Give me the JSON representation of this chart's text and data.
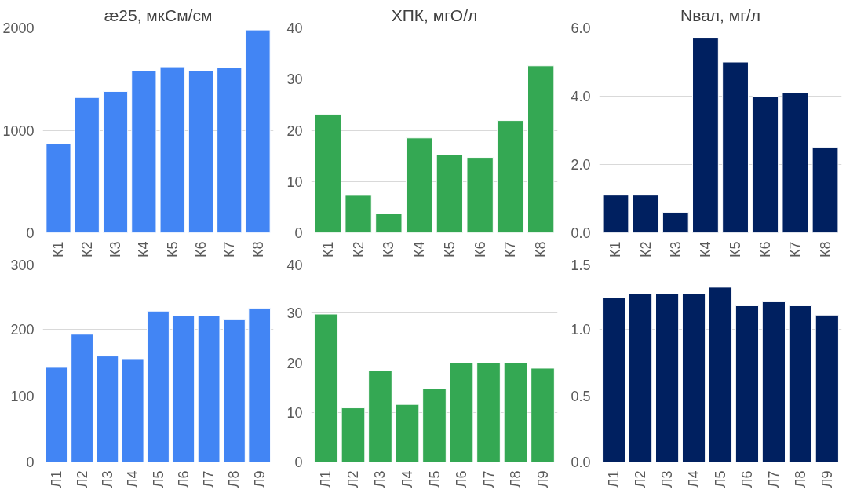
{
  "chart_data": [
    {
      "type": "bar",
      "title": "æ25, мкСм/см",
      "categories": [
        "К1",
        "К2",
        "К3",
        "К4",
        "К5",
        "К6",
        "К7",
        "К8"
      ],
      "values": [
        870,
        1320,
        1380,
        1580,
        1620,
        1580,
        1610,
        1980
      ],
      "color": "#4285f4",
      "ylim": [
        0,
        2000
      ],
      "yticks": [
        0,
        1000,
        2000
      ],
      "grid": "y"
    },
    {
      "type": "bar",
      "title": "ХПК, мгО/л",
      "categories": [
        "К1",
        "К2",
        "К3",
        "К4",
        "К5",
        "К6",
        "К7",
        "К8"
      ],
      "values": [
        23.1,
        7.3,
        3.7,
        18.5,
        15.2,
        14.7,
        21.9,
        32.6
      ],
      "color": "#34a853",
      "ylim": [
        0,
        40
      ],
      "yticks": [
        0,
        10,
        20,
        30,
        40
      ],
      "grid": "y"
    },
    {
      "type": "bar",
      "title": "Nвал, мг/л",
      "categories": [
        "К1",
        "К2",
        "К3",
        "К4",
        "К5",
        "К6",
        "К7",
        "К8"
      ],
      "values": [
        1.1,
        1.1,
        0.6,
        5.7,
        5.0,
        4.0,
        4.1,
        2.5
      ],
      "color": "#002060",
      "ylim": [
        0,
        6
      ],
      "yticks": [
        {
          "value": 0,
          "label": "0.0"
        },
        {
          "value": 2,
          "label": "2.0"
        },
        {
          "value": 4,
          "label": "4.0"
        },
        {
          "value": 6,
          "label": "6.0"
        }
      ],
      "grid": "y"
    },
    {
      "type": "bar",
      "categories": [
        "Л1",
        "Л2",
        "Л3",
        "Л4",
        "Л5",
        "Л6",
        "Л7",
        "Л8",
        "Л9"
      ],
      "values": [
        143,
        193,
        160,
        156,
        228,
        221,
        221,
        216,
        232
      ],
      "color": "#4285f4",
      "ylim": [
        0,
        300
      ],
      "yticks": [
        0,
        100,
        200,
        300
      ],
      "grid": "y"
    },
    {
      "type": "bar",
      "categories": [
        "Л1",
        "Л2",
        "Л3",
        "Л4",
        "Л5",
        "Л6",
        "Л7",
        "Л8",
        "Л9"
      ],
      "values": [
        29.8,
        10.9,
        18.4,
        11.6,
        14.8,
        20,
        20,
        20,
        18.9
      ],
      "color": "#34a853",
      "ylim": [
        0,
        40
      ],
      "yticks": [
        0,
        10,
        20,
        30,
        40
      ],
      "grid": "y"
    },
    {
      "type": "bar",
      "categories": [
        "Л1",
        "Л2",
        "Л3",
        "Л4",
        "Л5",
        "Л6",
        "Л7",
        "Л8",
        "Л9"
      ],
      "values": [
        1.24,
        1.27,
        1.27,
        1.27,
        1.32,
        1.18,
        1.21,
        1.18,
        1.11
      ],
      "color": "#002060",
      "ylim": [
        0,
        1.5
      ],
      "yticks": [
        {
          "value": 0,
          "label": "0.0"
        },
        {
          "value": 0.5,
          "label": "0.5"
        },
        {
          "value": 1,
          "label": "1.0"
        },
        {
          "value": 1.5,
          "label": "1.5"
        }
      ],
      "grid": "y"
    }
  ]
}
